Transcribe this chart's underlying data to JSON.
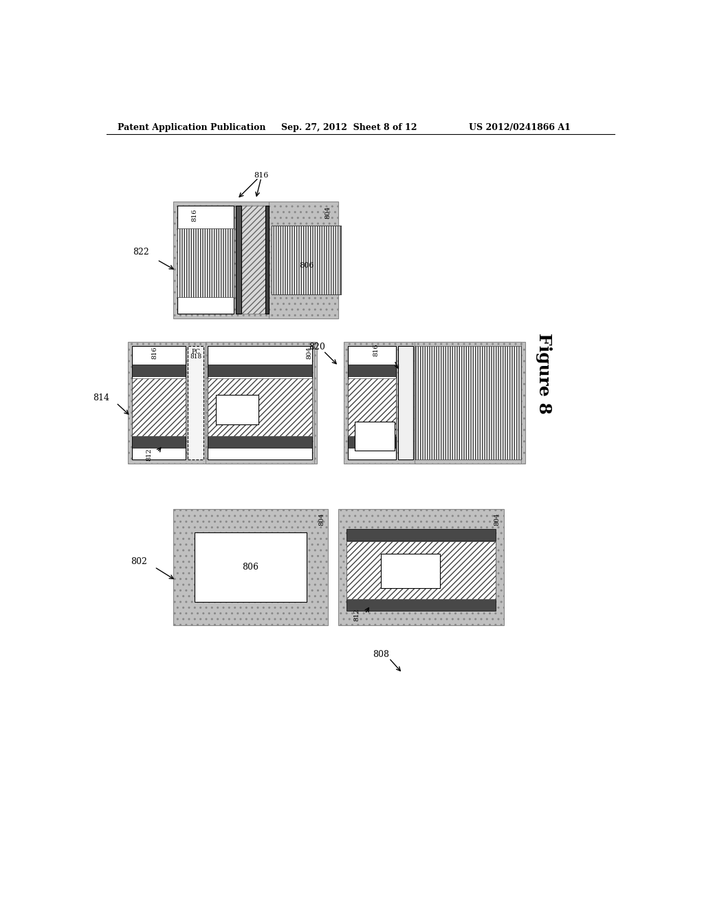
{
  "bg_color": "#ffffff",
  "header_left": "Patent Application Publication",
  "header_mid": "Sep. 27, 2012  Sheet 8 of 12",
  "header_right": "US 2012/0241866 A1",
  "substrate_color": "#c0c0c0",
  "dark_band_color": "#484848",
  "diag_hatch_face": "#e8e8e8",
  "pc_dashed_face": "#f5f5f5",
  "white_strip_face": "#f0f0f0",
  "light_strip_face": "#e0e0e0"
}
